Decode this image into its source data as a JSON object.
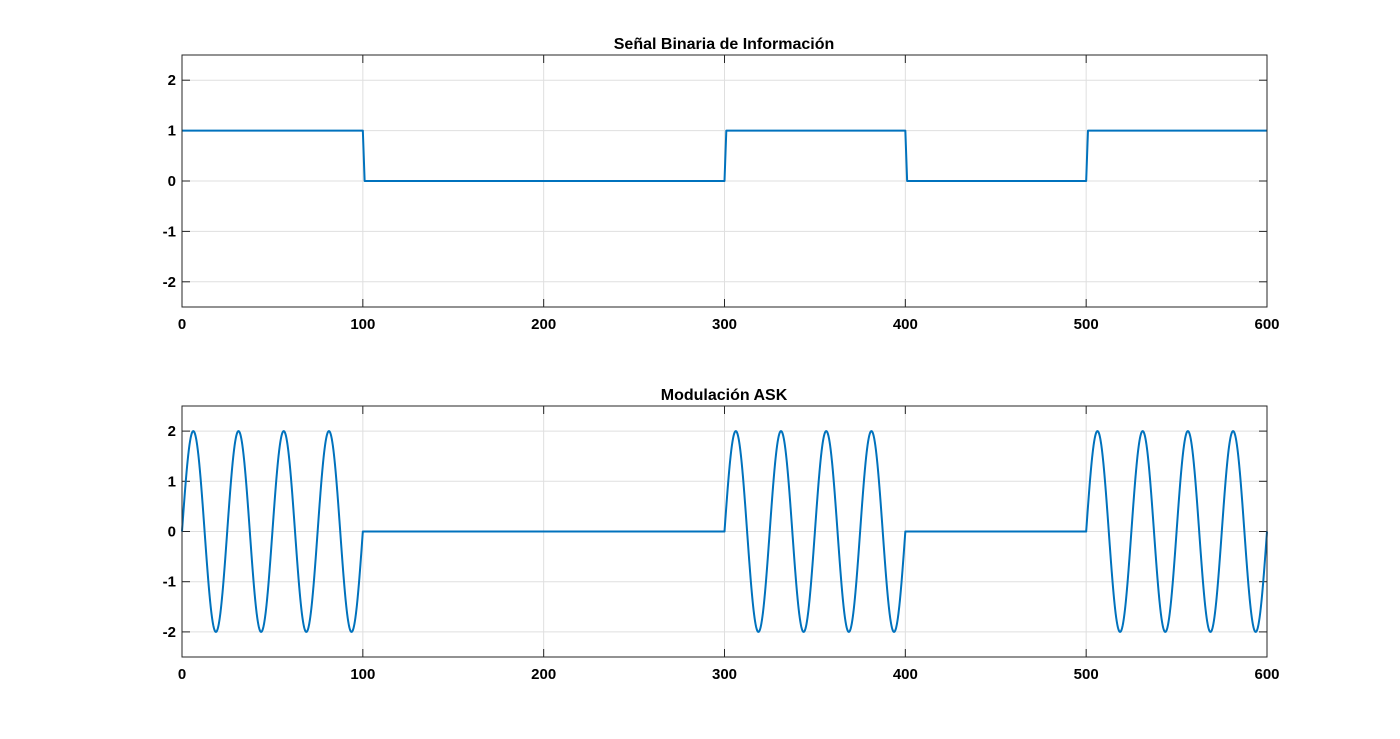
{
  "chart_data": [
    {
      "type": "line",
      "title": "Señal Binaria de Información",
      "xlabel": "",
      "ylabel": "",
      "xlim": [
        0,
        600
      ],
      "ylim": [
        -2.5,
        2.5
      ],
      "x_ticks": [
        0,
        100,
        200,
        300,
        400,
        500,
        600
      ],
      "y_ticks": [
        2,
        1,
        0,
        -1,
        -2
      ],
      "x_tick_labels": [
        "0",
        "100",
        "200",
        "300",
        "400",
        "500",
        "600"
      ],
      "y_tick_labels": [
        "2",
        "1",
        "0",
        "-1",
        "-2"
      ],
      "grid": true,
      "color": "#0072bd",
      "bits": [
        1,
        0,
        0,
        1,
        0,
        1
      ],
      "bit_duration": 100,
      "series": [
        {
          "x": [
            0,
            100,
            101,
            300,
            301,
            400,
            401,
            500,
            501,
            600
          ],
          "y": [
            1,
            1,
            0,
            0,
            1,
            1,
            0,
            0,
            1,
            1
          ]
        }
      ]
    },
    {
      "type": "line",
      "title": "Modulación ASK",
      "xlabel": "",
      "ylabel": "",
      "xlim": [
        0,
        600
      ],
      "ylim": [
        -2.5,
        2.5
      ],
      "x_ticks": [
        0,
        100,
        200,
        300,
        400,
        500,
        600
      ],
      "y_ticks": [
        2,
        1,
        0,
        -1,
        -2
      ],
      "x_tick_labels": [
        "0",
        "100",
        "200",
        "300",
        "400",
        "500",
        "600"
      ],
      "y_tick_labels": [
        "2",
        "1",
        "0",
        "-1",
        "-2"
      ],
      "grid": true,
      "color": "#0072bd",
      "bits": [
        1,
        0,
        0,
        1,
        0,
        1
      ],
      "bit_duration": 100,
      "carrier_amplitude": 2,
      "carrier_cycles_per_bit": 4
    }
  ]
}
